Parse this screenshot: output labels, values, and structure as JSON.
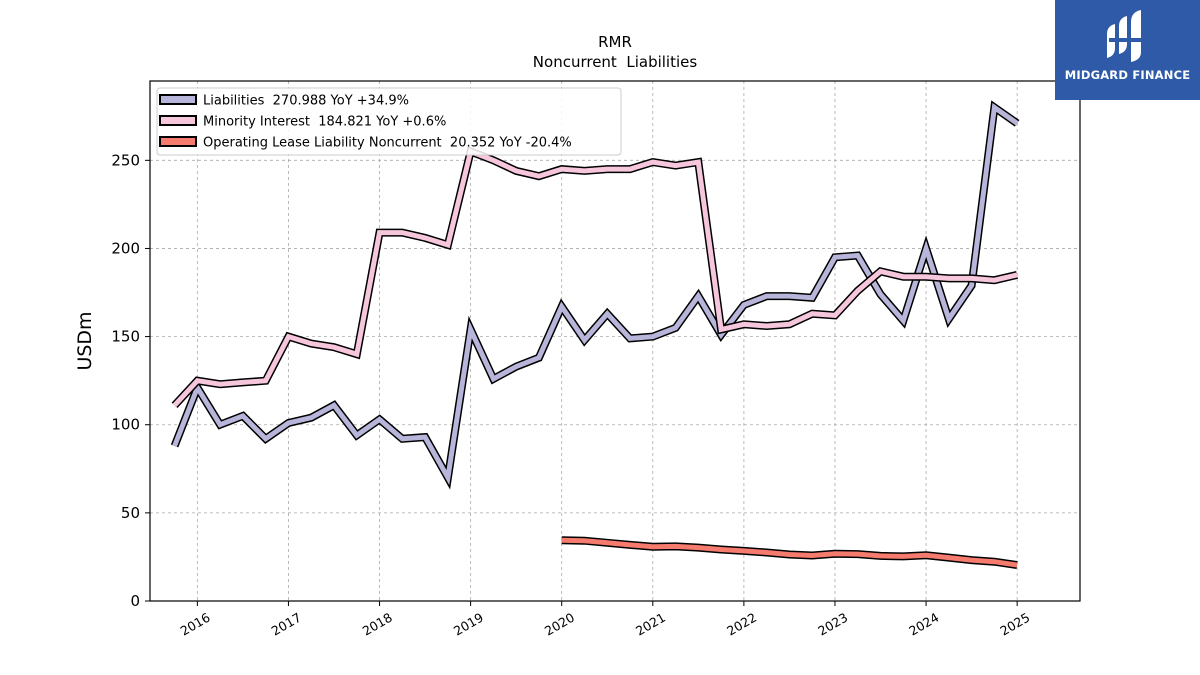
{
  "brand": {
    "name": "MIDGARD FINANCE",
    "bg_color": "#2f5aa8"
  },
  "chart_data": {
    "type": "line",
    "title": "RMR",
    "subtitle": "Noncurrent  Liabilities",
    "ylabel": "USDm",
    "xlabel": "",
    "ylim": [
      0,
      295
    ],
    "yticks": [
      0,
      50,
      100,
      150,
      200,
      250
    ],
    "xticks": [
      "2016",
      "2017",
      "2018",
      "2019",
      "2020",
      "2021",
      "2022",
      "2023",
      "2024",
      "2025"
    ],
    "grid": true,
    "legend_position": "top-left",
    "series": [
      {
        "name": "Liabilities",
        "legend": "Liabilities  270.988 YoY +34.9%",
        "color": "#b7b5d9",
        "x": [
          2015.75,
          2016.0,
          2016.25,
          2016.5,
          2016.75,
          2017.0,
          2017.25,
          2017.5,
          2017.75,
          2018.0,
          2018.25,
          2018.5,
          2018.75,
          2019.0,
          2019.25,
          2019.5,
          2019.75,
          2020.0,
          2020.25,
          2020.5,
          2020.75,
          2021.0,
          2021.25,
          2021.5,
          2021.75,
          2022.0,
          2022.25,
          2022.5,
          2022.75,
          2023.0,
          2023.25,
          2023.5,
          2023.75,
          2024.0,
          2024.25,
          2024.5,
          2024.75,
          2025.0
        ],
        "values": [
          88,
          121,
          100,
          105,
          92,
          101,
          104,
          111,
          94,
          103,
          92,
          93,
          70,
          154,
          126,
          133,
          138,
          167,
          148,
          163,
          149,
          150,
          155,
          173,
          151,
          168,
          173,
          173,
          172,
          195,
          196,
          174,
          159,
          200,
          160,
          179,
          280,
          271
        ]
      },
      {
        "name": "Minority Interest",
        "legend": "Minority Interest  184.821 YoY +0.6%",
        "color": "#f6c6dc",
        "x": [
          2015.75,
          2016.0,
          2016.25,
          2016.5,
          2016.75,
          2017.0,
          2017.25,
          2017.5,
          2017.75,
          2018.0,
          2018.25,
          2018.5,
          2018.75,
          2019.0,
          2019.25,
          2019.5,
          2019.75,
          2020.0,
          2020.25,
          2020.5,
          2020.75,
          2021.0,
          2021.25,
          2021.5,
          2021.75,
          2022.0,
          2022.25,
          2022.5,
          2022.75,
          2023.0,
          2023.25,
          2023.5,
          2023.75,
          2024.0,
          2024.25,
          2024.5,
          2024.75,
          2025.0
        ],
        "values": [
          111,
          125,
          123,
          124,
          125,
          150,
          146,
          144,
          140,
          209,
          209,
          206,
          202,
          255,
          250,
          244,
          241,
          245,
          244,
          245,
          245,
          249,
          247,
          249,
          154,
          157,
          156,
          157,
          163,
          162,
          176,
          187,
          184,
          184,
          183,
          183,
          182,
          185
        ]
      },
      {
        "name": "Operating Lease Liability Noncurrent",
        "legend": "Operating Lease Liability Noncurrent  20.352 YoY -20.4%",
        "color": "#f47b6e",
        "x": [
          2020.0,
          2020.25,
          2020.5,
          2020.75,
          2021.0,
          2021.25,
          2021.5,
          2021.75,
          2022.0,
          2022.25,
          2022.5,
          2022.75,
          2023.0,
          2023.25,
          2023.5,
          2023.75,
          2024.0,
          2024.25,
          2024.5,
          2024.75,
          2025.0
        ],
        "values": [
          34.5,
          34.2,
          33,
          31.8,
          30.8,
          31,
          30.3,
          29.2,
          28.4,
          27.5,
          26.4,
          25.8,
          26.8,
          26.6,
          25.6,
          25.3,
          25.9,
          24.6,
          23.2,
          22.3,
          20.4
        ]
      }
    ]
  }
}
